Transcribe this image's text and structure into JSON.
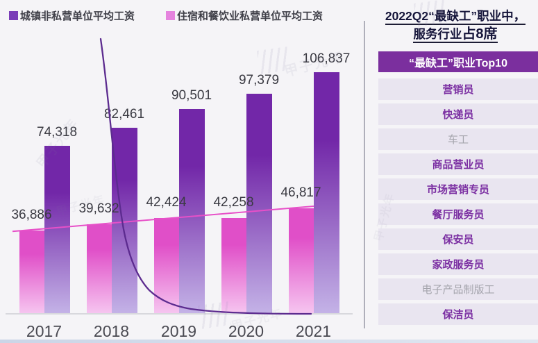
{
  "legend": {
    "items": [
      {
        "label": "城镇非私营单位平均工资",
        "color": "#7A3DB8"
      },
      {
        "label": "住宿和餐饮业私营单位平均工资",
        "color": "#E583DE"
      }
    ]
  },
  "chart_data": {
    "type": "bar",
    "title": "",
    "categories": [
      "2017",
      "2018",
      "2019",
      "2020",
      "2021"
    ],
    "series": [
      {
        "name": "城镇非私营单位平均工资",
        "color_top": "#7227A8",
        "color_bottom": "#C4B3E7",
        "values": [
          74318,
          82461,
          90501,
          97379,
          106837
        ]
      },
      {
        "name": "住宿和餐饮业私营单位平均工资",
        "color_top": "#E04FC8",
        "color_bottom": "#F6C6F0",
        "values": [
          36886,
          39632,
          42424,
          42258,
          46817
        ]
      }
    ],
    "value_labels": {
      "城镇非私营单位平均工资": [
        "74,318",
        "82,461",
        "90,501",
        "97,379",
        "106,837"
      ],
      "住宿和餐饮业私营单位平均工资": [
        "36,886",
        "39,632",
        "42,424",
        "42,258",
        "46,817"
      ]
    },
    "xlabel": "",
    "ylabel": "",
    "ylim": [
      0,
      115000
    ],
    "grid": false,
    "legend_position": "top-left",
    "annotations": [
      "深紫色曲线：自左上方陡降并趋近横轴（指数衰减形）",
      "粉色趋势线：沿住宿和餐饮业柱顶缓慢上升"
    ]
  },
  "right_panel": {
    "title": {
      "line1": "2022Q2“最缺工”职业中，",
      "line2_regular": "服务行业",
      "line2_bold": "占8席"
    },
    "list_header": "“最缺工”职业Top10",
    "items": [
      {
        "label": "营销员",
        "service_highlight": true
      },
      {
        "label": "快递员",
        "service_highlight": true
      },
      {
        "label": "车工",
        "service_highlight": false
      },
      {
        "label": "商品营业员",
        "service_highlight": true
      },
      {
        "label": "市场营销专员",
        "service_highlight": true
      },
      {
        "label": "餐厅服务员",
        "service_highlight": true
      },
      {
        "label": "保安员",
        "service_highlight": true
      },
      {
        "label": "家政服务员",
        "service_highlight": true
      },
      {
        "label": "电子产品制版工",
        "service_highlight": false
      },
      {
        "label": "保洁员",
        "service_highlight": true
      }
    ]
  },
  "watermark": {
    "text": "甲子光年"
  },
  "colors": {
    "accent_purple": "#7B2F9E",
    "accent_pink": "#E353CB",
    "curve_purple": "#5C2B8F",
    "trend_pink": "#E750C8",
    "list_item_bg": "#E9E5F0",
    "muted_item_text": "#A5A5AD"
  }
}
